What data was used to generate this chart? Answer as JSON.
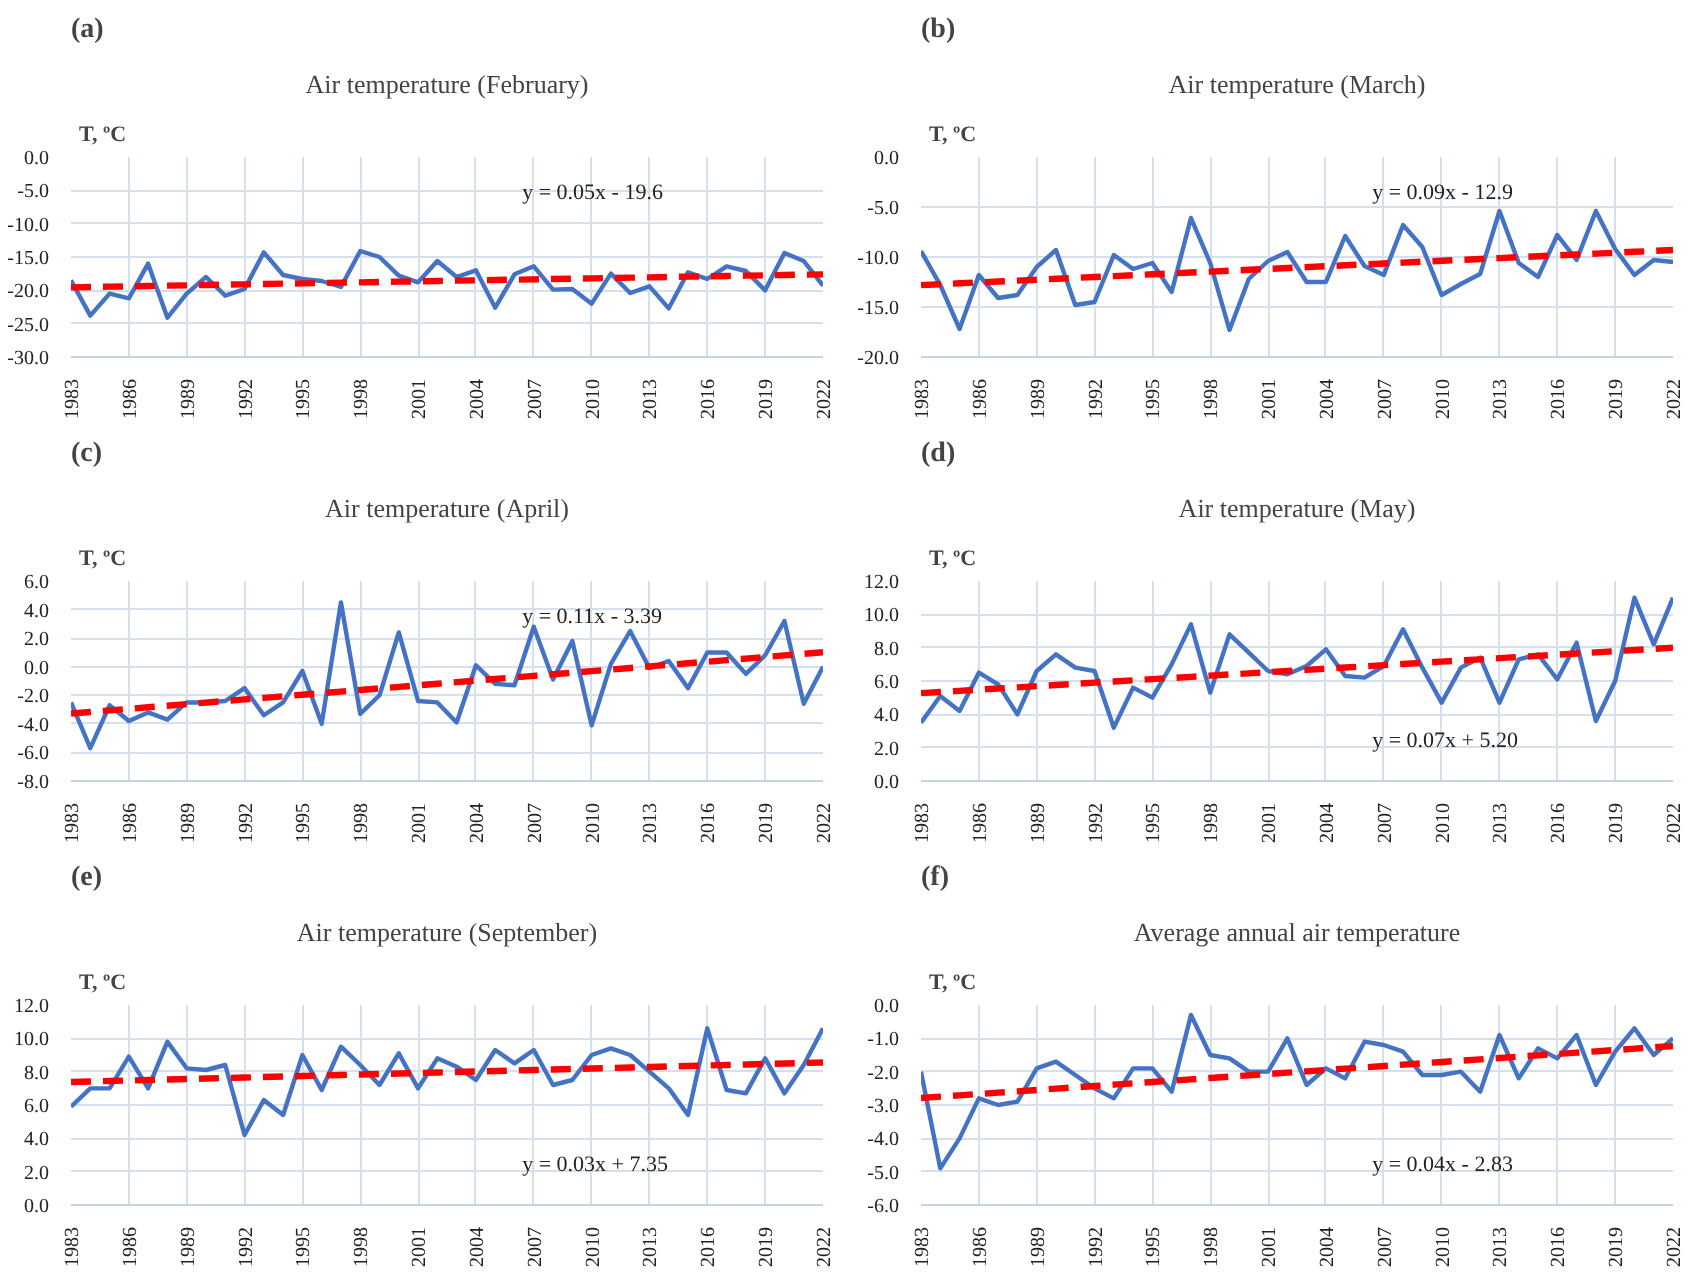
{
  "chart_data": [
    {
      "type": "line",
      "title": "Air temperature (February)",
      "ylabel": "T, ºC",
      "annotations": [
        "(a)",
        "y = 0.05x - 19.6"
      ],
      "grid": true,
      "xlim": [
        1983,
        2022
      ],
      "xticks": [
        1983,
        1986,
        1989,
        1992,
        1995,
        1998,
        2001,
        2004,
        2007,
        2010,
        2013,
        2016,
        2019,
        2022
      ],
      "ylim": [
        -30,
        0
      ],
      "yticks": [
        {
          "value": -30,
          "label": "-30.0"
        },
        {
          "value": -25,
          "label": "-25.0"
        },
        {
          "value": -20,
          "label": "-20.0"
        },
        {
          "value": -15,
          "label": "-15.0"
        },
        {
          "value": -10,
          "label": "-10.0"
        },
        {
          "value": -5,
          "label": "-5.0"
        },
        {
          "value": 0,
          "label": "0.0"
        }
      ],
      "x": [
        1983,
        1984,
        1985,
        1986,
        1987,
        1988,
        1989,
        1990,
        1991,
        1992,
        1993,
        1994,
        1995,
        1996,
        1997,
        1998,
        1999,
        2000,
        2001,
        2002,
        2003,
        2004,
        2005,
        2006,
        2007,
        2008,
        2009,
        2010,
        2011,
        2012,
        2013,
        2014,
        2015,
        2016,
        2017,
        2018,
        2019,
        2020,
        2021,
        2022
      ],
      "series": [
        {
          "color": "#4472c4",
          "values": [
            -18.5,
            -23.8,
            -20.5,
            -21.2,
            -16.0,
            -24.1,
            -20.5,
            -18.0,
            -20.8,
            -19.8,
            -14.3,
            -17.7,
            -18.3,
            -18.6,
            -19.5,
            -14.1,
            -15.0,
            -17.8,
            -18.8,
            -15.6,
            -18.0,
            -17.0,
            -22.6,
            -17.6,
            -16.4,
            -19.9,
            -19.8,
            -22.0,
            -17.5,
            -20.4,
            -19.4,
            -22.7,
            -17.3,
            -18.3,
            -16.4,
            -17.1,
            -20.0,
            -14.4,
            -15.6,
            -19.3
          ]
        },
        {
          "type": "line",
          "color": "#ff0000",
          "line_style": "dashed",
          "values": [
            -19.55,
            -19.5,
            -19.45,
            -19.4,
            -19.35,
            -19.3,
            -19.25,
            -19.2,
            -19.15,
            -19.1,
            -19.05,
            -19.0,
            -18.95,
            -18.9,
            -18.85,
            -18.8,
            -18.75,
            -18.7,
            -18.65,
            -18.6,
            -18.55,
            -18.5,
            -18.45,
            -18.4,
            -18.35,
            -18.3,
            -18.25,
            -18.2,
            -18.15,
            -18.1,
            -18.05,
            -18.0,
            -17.95,
            -17.9,
            -17.85,
            -17.8,
            -17.75,
            -17.7,
            -17.65,
            -17.6
          ]
        }
      ]
    },
    {
      "type": "line",
      "title": "Air temperature (March)",
      "ylabel": "T, ºC",
      "annotations": [
        "(b)",
        "y = 0.09x - 12.9"
      ],
      "grid": true,
      "xlim": [
        1983,
        2022
      ],
      "xticks": [
        1983,
        1986,
        1989,
        1992,
        1995,
        1998,
        2001,
        2004,
        2007,
        2010,
        2013,
        2016,
        2019,
        2022
      ],
      "ylim": [
        -20,
        0
      ],
      "yticks": [
        {
          "value": -20,
          "label": "-20.0"
        },
        {
          "value": -15,
          "label": "-15.0"
        },
        {
          "value": -10,
          "label": "-10.0"
        },
        {
          "value": -5,
          "label": "-5.0"
        },
        {
          "value": 0,
          "label": "0.0"
        }
      ],
      "x": [
        1983,
        1984,
        1985,
        1986,
        1987,
        1988,
        1989,
        1990,
        1991,
        1992,
        1993,
        1994,
        1995,
        1996,
        1997,
        1998,
        1999,
        2000,
        2001,
        2002,
        2003,
        2004,
        2005,
        2006,
        2007,
        2008,
        2009,
        2010,
        2011,
        2012,
        2013,
        2014,
        2015,
        2016,
        2017,
        2018,
        2019,
        2020,
        2021,
        2022
      ],
      "series": [
        {
          "color": "#4472c4",
          "values": [
            -9.4,
            -12.8,
            -17.2,
            -11.8,
            -14.1,
            -13.8,
            -11.0,
            -9.3,
            -14.8,
            -14.5,
            -9.8,
            -11.2,
            -10.6,
            -13.5,
            -6.1,
            -10.6,
            -17.3,
            -12.2,
            -10.4,
            -9.5,
            -12.5,
            -12.5,
            -7.9,
            -10.9,
            -11.8,
            -6.8,
            -9.0,
            -13.8,
            -12.7,
            -11.7,
            -5.4,
            -10.6,
            -12.0,
            -7.8,
            -10.3,
            -5.4,
            -9.2,
            -11.8,
            -10.3,
            -10.5
          ]
        },
        {
          "type": "line",
          "color": "#ff0000",
          "line_style": "dashed",
          "values": [
            -12.81,
            -12.72,
            -12.63,
            -12.54,
            -12.45,
            -12.36,
            -12.27,
            -12.18,
            -12.09,
            -12.0,
            -11.91,
            -11.82,
            -11.73,
            -11.64,
            -11.55,
            -11.46,
            -11.37,
            -11.28,
            -11.19,
            -11.1,
            -11.01,
            -10.92,
            -10.83,
            -10.74,
            -10.65,
            -10.56,
            -10.47,
            -10.38,
            -10.29,
            -10.2,
            -10.11,
            -10.02,
            -9.93,
            -9.84,
            -9.75,
            -9.66,
            -9.57,
            -9.48,
            -9.39,
            -9.3
          ]
        }
      ]
    },
    {
      "type": "line",
      "title": "Air temperature (April)",
      "ylabel": "T, ºC",
      "annotations": [
        "(c)",
        "y = 0.11x - 3.39"
      ],
      "grid": true,
      "xlim": [
        1983,
        2022
      ],
      "xticks": [
        1983,
        1986,
        1989,
        1992,
        1995,
        1998,
        2001,
        2004,
        2007,
        2010,
        2013,
        2016,
        2019,
        2022
      ],
      "ylim": [
        -8,
        6
      ],
      "yticks": [
        {
          "value": -8,
          "label": "-8.0"
        },
        {
          "value": -6,
          "label": "-6.0"
        },
        {
          "value": -4,
          "label": "-4.0"
        },
        {
          "value": -2,
          "label": "-2.0"
        },
        {
          "value": 0,
          "label": "0.0"
        },
        {
          "value": 2,
          "label": "2.0"
        },
        {
          "value": 4,
          "label": "4.0"
        },
        {
          "value": 6,
          "label": "6.0"
        }
      ],
      "x": [
        1983,
        1984,
        1985,
        1986,
        1987,
        1988,
        1989,
        1990,
        1991,
        1992,
        1993,
        1994,
        1995,
        1996,
        1997,
        1998,
        1999,
        2000,
        2001,
        2002,
        2003,
        2004,
        2005,
        2006,
        2007,
        2008,
        2009,
        2010,
        2011,
        2012,
        2013,
        2014,
        2015,
        2016,
        2017,
        2018,
        2019,
        2020,
        2021,
        2022
      ],
      "series": [
        {
          "color": "#4472c4",
          "values": [
            -2.5,
            -5.7,
            -2.7,
            -3.8,
            -3.2,
            -3.7,
            -2.5,
            -2.5,
            -2.4,
            -1.5,
            -3.4,
            -2.5,
            -0.3,
            -4.0,
            4.5,
            -3.3,
            -2.0,
            2.4,
            -2.4,
            -2.5,
            -3.9,
            0.1,
            -1.2,
            -1.3,
            2.8,
            -0.9,
            1.8,
            -4.1,
            0.2,
            2.5,
            -0.1,
            0.4,
            -1.5,
            1.0,
            1.0,
            -0.5,
            0.8,
            3.2,
            -2.6,
            0.0
          ]
        },
        {
          "type": "line",
          "color": "#ff0000",
          "line_style": "dashed",
          "values": [
            -3.28,
            -3.17,
            -3.06,
            -2.95,
            -2.84,
            -2.73,
            -2.62,
            -2.51,
            -2.4,
            -2.29,
            -2.18,
            -2.07,
            -1.96,
            -1.85,
            -1.74,
            -1.63,
            -1.52,
            -1.41,
            -1.3,
            -1.19,
            -1.08,
            -0.97,
            -0.86,
            -0.75,
            -0.64,
            -0.53,
            -0.42,
            -0.31,
            -0.2,
            -0.09,
            0.02,
            0.13,
            0.24,
            0.35,
            0.46,
            0.57,
            0.68,
            0.79,
            0.9,
            1.01
          ]
        }
      ]
    },
    {
      "type": "line",
      "title": "Air temperature (May)",
      "ylabel": "T, ºC",
      "annotations": [
        "(d)",
        "y = 0.07x + 5.20"
      ],
      "grid": true,
      "xlim": [
        1983,
        2022
      ],
      "xticks": [
        1983,
        1986,
        1989,
        1992,
        1995,
        1998,
        2001,
        2004,
        2007,
        2010,
        2013,
        2016,
        2019,
        2022
      ],
      "ylim": [
        0,
        12
      ],
      "yticks": [
        {
          "value": 0,
          "label": "0.0"
        },
        {
          "value": 2,
          "label": "2.0"
        },
        {
          "value": 4,
          "label": "4.0"
        },
        {
          "value": 6,
          "label": "6.0"
        },
        {
          "value": 8,
          "label": "8.0"
        },
        {
          "value": 10,
          "label": "10.0"
        },
        {
          "value": 12,
          "label": "12.0"
        }
      ],
      "x": [
        1983,
        1984,
        1985,
        1986,
        1987,
        1988,
        1989,
        1990,
        1991,
        1992,
        1993,
        1994,
        1995,
        1996,
        1997,
        1998,
        1999,
        2000,
        2001,
        2002,
        2003,
        2004,
        2005,
        2006,
        2007,
        2008,
        2009,
        2010,
        2011,
        2012,
        2013,
        2014,
        2015,
        2016,
        2017,
        2018,
        2019,
        2020,
        2021,
        2022
      ],
      "series": [
        {
          "color": "#4472c4",
          "values": [
            3.5,
            5.1,
            4.2,
            6.5,
            5.8,
            4.0,
            6.6,
            7.6,
            6.8,
            6.6,
            3.2,
            5.6,
            5.0,
            7.0,
            9.4,
            5.3,
            8.8,
            7.7,
            6.6,
            6.4,
            6.9,
            7.9,
            6.3,
            6.2,
            6.9,
            9.1,
            6.8,
            4.7,
            6.8,
            7.4,
            4.7,
            7.3,
            7.6,
            6.1,
            8.3,
            3.6,
            6.0,
            11.0,
            8.2,
            11.0
          ]
        },
        {
          "type": "line",
          "color": "#ff0000",
          "line_style": "dashed",
          "values": [
            5.27,
            5.34,
            5.41,
            5.48,
            5.55,
            5.62,
            5.69,
            5.76,
            5.83,
            5.9,
            5.97,
            6.04,
            6.11,
            6.18,
            6.25,
            6.32,
            6.39,
            6.46,
            6.53,
            6.6,
            6.67,
            6.74,
            6.81,
            6.88,
            6.95,
            7.02,
            7.09,
            7.16,
            7.23,
            7.3,
            7.37,
            7.44,
            7.51,
            7.58,
            7.65,
            7.72,
            7.79,
            7.86,
            7.93,
            8.0
          ]
        }
      ]
    },
    {
      "type": "line",
      "title": "Air temperature (September)",
      "ylabel": "T, ºC",
      "annotations": [
        "(e)",
        "y = 0.03x + 7.35"
      ],
      "grid": true,
      "xlim": [
        1983,
        2022
      ],
      "xticks": [
        1983,
        1986,
        1989,
        1992,
        1995,
        1998,
        2001,
        2004,
        2007,
        2010,
        2013,
        2016,
        2019,
        2022
      ],
      "ylim": [
        0,
        12
      ],
      "yticks": [
        {
          "value": 0,
          "label": "0.0"
        },
        {
          "value": 2,
          "label": "2.0"
        },
        {
          "value": 4,
          "label": "4.0"
        },
        {
          "value": 6,
          "label": "6.0"
        },
        {
          "value": 8,
          "label": "8.0"
        },
        {
          "value": 10,
          "label": "10.0"
        },
        {
          "value": 12,
          "label": "12.0"
        }
      ],
      "x": [
        1983,
        1984,
        1985,
        1986,
        1987,
        1988,
        1989,
        1990,
        1991,
        1992,
        1993,
        1994,
        1995,
        1996,
        1997,
        1998,
        1999,
        2000,
        2001,
        2002,
        2003,
        2004,
        2005,
        2006,
        2007,
        2008,
        2009,
        2010,
        2011,
        2012,
        2013,
        2014,
        2015,
        2016,
        2017,
        2018,
        2019,
        2020,
        2021,
        2022
      ],
      "series": [
        {
          "color": "#4472c4",
          "values": [
            5.9,
            7.0,
            7.0,
            8.9,
            7.0,
            9.8,
            8.2,
            8.1,
            8.4,
            4.2,
            6.3,
            5.4,
            9.0,
            6.9,
            9.5,
            8.4,
            7.2,
            9.1,
            7.0,
            8.8,
            8.3,
            7.5,
            9.3,
            8.5,
            9.3,
            7.2,
            7.5,
            9.0,
            9.4,
            9.0,
            8.0,
            7.0,
            5.4,
            10.6,
            6.9,
            6.7,
            8.8,
            6.7,
            8.4,
            10.6
          ]
        },
        {
          "type": "line",
          "color": "#ff0000",
          "line_style": "dashed",
          "values": [
            7.38,
            7.41,
            7.44,
            7.47,
            7.5,
            7.53,
            7.56,
            7.59,
            7.62,
            7.65,
            7.68,
            7.71,
            7.74,
            7.77,
            7.8,
            7.83,
            7.86,
            7.89,
            7.92,
            7.95,
            7.98,
            8.01,
            8.04,
            8.07,
            8.1,
            8.13,
            8.16,
            8.19,
            8.22,
            8.25,
            8.28,
            8.31,
            8.34,
            8.37,
            8.4,
            8.43,
            8.46,
            8.49,
            8.52,
            8.55
          ]
        }
      ]
    },
    {
      "type": "line",
      "title": "Average annual air temperature",
      "ylabel": "T, ºC",
      "annotations": [
        "(f)",
        "y = 0.04x - 2.83"
      ],
      "grid": true,
      "xlim": [
        1983,
        2022
      ],
      "xticks": [
        1983,
        1986,
        1989,
        1992,
        1995,
        1998,
        2001,
        2004,
        2007,
        2010,
        2013,
        2016,
        2019,
        2022
      ],
      "ylim": [
        -6,
        0
      ],
      "yticks": [
        {
          "value": -6,
          "label": "-6.0"
        },
        {
          "value": -5,
          "label": "-5.0"
        },
        {
          "value": -4,
          "label": "-4.0"
        },
        {
          "value": -3,
          "label": "-3.0"
        },
        {
          "value": -2,
          "label": "-2.0"
        },
        {
          "value": -1,
          "label": "-1.0"
        },
        {
          "value": 0,
          "label": "0.0"
        }
      ],
      "x": [
        1983,
        1984,
        1985,
        1986,
        1987,
        1988,
        1989,
        1990,
        1991,
        1992,
        1993,
        1994,
        1995,
        1996,
        1997,
        1998,
        1999,
        2000,
        2001,
        2002,
        2003,
        2004,
        2005,
        2006,
        2007,
        2008,
        2009,
        2010,
        2011,
        2012,
        2013,
        2014,
        2015,
        2016,
        2017,
        2018,
        2019,
        2020,
        2021,
        2022
      ],
      "series": [
        {
          "color": "#4472c4",
          "values": [
            -2.0,
            -4.9,
            -4.0,
            -2.8,
            -3.0,
            -2.9,
            -1.9,
            -1.7,
            -2.1,
            -2.5,
            -2.8,
            -1.9,
            -1.9,
            -2.6,
            -0.3,
            -1.5,
            -1.6,
            -2.0,
            -2.0,
            -1.0,
            -2.4,
            -1.9,
            -2.2,
            -1.1,
            -1.2,
            -1.4,
            -2.1,
            -2.1,
            -2.0,
            -2.6,
            -0.9,
            -2.2,
            -1.3,
            -1.6,
            -0.9,
            -2.4,
            -1.4,
            -0.7,
            -1.5,
            -1.0
          ]
        },
        {
          "type": "line",
          "color": "#ff0000",
          "line_style": "dashed",
          "values": [
            -2.79,
            -2.75,
            -2.71,
            -2.67,
            -2.63,
            -2.59,
            -2.55,
            -2.51,
            -2.47,
            -2.43,
            -2.39,
            -2.35,
            -2.31,
            -2.27,
            -2.23,
            -2.19,
            -2.15,
            -2.11,
            -2.07,
            -2.03,
            -1.99,
            -1.95,
            -1.91,
            -1.87,
            -1.83,
            -1.79,
            -1.75,
            -1.71,
            -1.67,
            -1.63,
            -1.59,
            -1.55,
            -1.51,
            -1.47,
            -1.43,
            -1.39,
            -1.35,
            -1.31,
            -1.27,
            -1.23
          ]
        }
      ]
    }
  ]
}
